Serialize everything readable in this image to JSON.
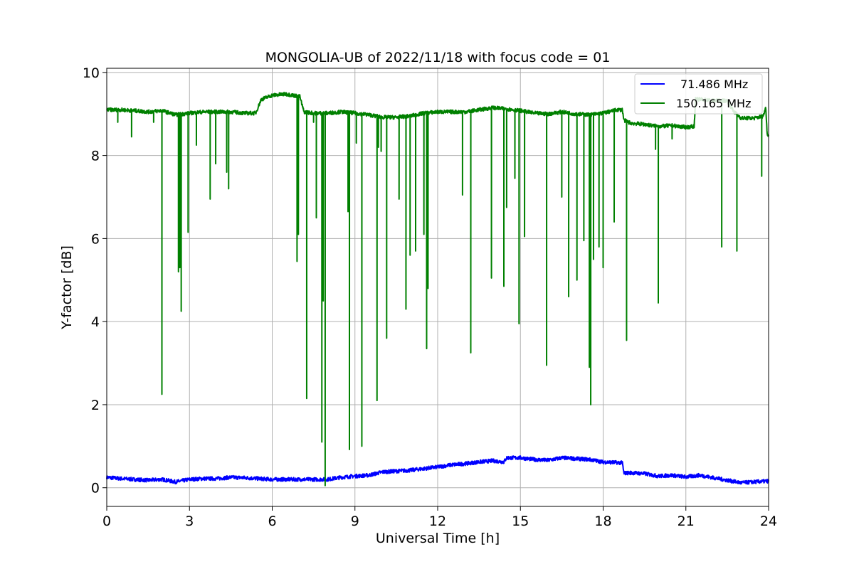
{
  "chart_data": {
    "type": "line",
    "title": "MONGOLIA-UB of 2022/11/18 with focus code = 01",
    "xlabel": "Universal Time [h]",
    "ylabel": "Y-factor [dB]",
    "xlim": [
      0,
      24
    ],
    "ylim": [
      -0.45,
      10.1
    ],
    "xticks": [
      0,
      3,
      6,
      9,
      12,
      15,
      18,
      21,
      24
    ],
    "yticks": [
      0,
      2,
      4,
      6,
      8,
      10
    ],
    "grid": true,
    "legend_position": "top-right",
    "series": [
      {
        "name": "71.486 MHz",
        "color": "#0000ff",
        "points": [
          [
            0,
            0.25
          ],
          [
            0.5,
            0.22
          ],
          [
            1,
            0.2
          ],
          [
            1.5,
            0.18
          ],
          [
            2,
            0.2
          ],
          [
            2.5,
            0.14
          ],
          [
            3,
            0.2
          ],
          [
            3.5,
            0.22
          ],
          [
            4,
            0.22
          ],
          [
            4.5,
            0.25
          ],
          [
            5,
            0.24
          ],
          [
            5.5,
            0.22
          ],
          [
            6,
            0.2
          ],
          [
            6.5,
            0.2
          ],
          [
            7,
            0.2
          ],
          [
            7.5,
            0.2
          ],
          [
            8,
            0.2
          ],
          [
            8.5,
            0.25
          ],
          [
            9,
            0.28
          ],
          [
            9.5,
            0.3
          ],
          [
            10,
            0.38
          ],
          [
            10.5,
            0.4
          ],
          [
            11,
            0.42
          ],
          [
            11.5,
            0.46
          ],
          [
            12,
            0.5
          ],
          [
            12.5,
            0.55
          ],
          [
            13,
            0.58
          ],
          [
            13.5,
            0.62
          ],
          [
            14,
            0.65
          ],
          [
            14.4,
            0.62
          ],
          [
            14.5,
            0.72
          ],
          [
            15,
            0.72
          ],
          [
            15.5,
            0.68
          ],
          [
            16,
            0.66
          ],
          [
            16.5,
            0.72
          ],
          [
            17,
            0.7
          ],
          [
            17.5,
            0.68
          ],
          [
            18,
            0.62
          ],
          [
            18.7,
            0.6
          ],
          [
            18.75,
            0.35
          ],
          [
            19,
            0.36
          ],
          [
            19.5,
            0.34
          ],
          [
            20,
            0.28
          ],
          [
            20.5,
            0.3
          ],
          [
            21,
            0.26
          ],
          [
            21.5,
            0.3
          ],
          [
            22,
            0.24
          ],
          [
            22.5,
            0.18
          ],
          [
            23,
            0.12
          ],
          [
            23.5,
            0.14
          ],
          [
            24,
            0.16
          ]
        ],
        "spikes": []
      },
      {
        "name": "150.165 MHz",
        "color": "#008000",
        "points": [
          [
            0,
            9.1
          ],
          [
            0.5,
            9.1
          ],
          [
            1,
            9.08
          ],
          [
            1.5,
            9.05
          ],
          [
            2,
            9.08
          ],
          [
            2.5,
            8.98
          ],
          [
            3,
            9.02
          ],
          [
            3.5,
            9.05
          ],
          [
            4,
            9.05
          ],
          [
            4.5,
            9.05
          ],
          [
            5,
            9.02
          ],
          [
            5.4,
            9.02
          ],
          [
            5.6,
            9.35
          ],
          [
            6,
            9.45
          ],
          [
            6.5,
            9.48
          ],
          [
            7,
            9.42
          ],
          [
            7.15,
            9.05
          ],
          [
            7.5,
            9.02
          ],
          [
            8,
            9.02
          ],
          [
            8.5,
            9.05
          ],
          [
            9,
            9.02
          ],
          [
            9.5,
            8.98
          ],
          [
            10,
            8.92
          ],
          [
            10.5,
            8.92
          ],
          [
            11,
            8.95
          ],
          [
            11.5,
            9.02
          ],
          [
            12,
            9.05
          ],
          [
            12.5,
            9.05
          ],
          [
            13,
            9.05
          ],
          [
            13.5,
            9.1
          ],
          [
            14,
            9.15
          ],
          [
            14.5,
            9.12
          ],
          [
            15,
            9.08
          ],
          [
            15.5,
            9.02
          ],
          [
            16,
            9.0
          ],
          [
            16.5,
            9.05
          ],
          [
            17,
            9.0
          ],
          [
            17.5,
            8.98
          ],
          [
            18,
            9.02
          ],
          [
            18.5,
            9.1
          ],
          [
            18.7,
            9.1
          ],
          [
            18.75,
            8.85
          ],
          [
            19,
            8.78
          ],
          [
            19.5,
            8.75
          ],
          [
            20,
            8.7
          ],
          [
            20.5,
            8.72
          ],
          [
            21,
            8.68
          ],
          [
            21.3,
            8.7
          ],
          [
            21.35,
            9.35
          ],
          [
            21.5,
            9.35
          ],
          [
            22,
            9.32
          ],
          [
            22.5,
            9.32
          ],
          [
            22.75,
            9.05
          ],
          [
            23,
            8.9
          ],
          [
            23.5,
            8.9
          ],
          [
            23.8,
            8.95
          ],
          [
            23.9,
            9.15
          ],
          [
            23.95,
            8.5
          ],
          [
            24,
            8.5
          ]
        ],
        "spikes": [
          [
            0.4,
            8.8
          ],
          [
            0.9,
            8.45
          ],
          [
            1.7,
            8.8
          ],
          [
            2.0,
            2.25
          ],
          [
            2.6,
            5.2
          ],
          [
            2.65,
            5.3
          ],
          [
            2.7,
            4.25
          ],
          [
            2.95,
            6.15
          ],
          [
            3.25,
            8.25
          ],
          [
            3.75,
            6.95
          ],
          [
            3.95,
            7.8
          ],
          [
            4.35,
            7.6
          ],
          [
            4.42,
            7.2
          ],
          [
            6.9,
            5.45
          ],
          [
            6.95,
            6.1
          ],
          [
            7.25,
            2.15
          ],
          [
            7.5,
            8.8
          ],
          [
            7.6,
            6.5
          ],
          [
            7.8,
            1.1
          ],
          [
            7.85,
            4.5
          ],
          [
            7.92,
            0.05
          ],
          [
            8.75,
            6.65
          ],
          [
            8.8,
            0.92
          ],
          [
            9.05,
            8.3
          ],
          [
            9.25,
            1.0
          ],
          [
            9.8,
            2.1
          ],
          [
            9.85,
            8.2
          ],
          [
            9.95,
            8.1
          ],
          [
            10.15,
            3.6
          ],
          [
            10.6,
            6.95
          ],
          [
            10.85,
            4.3
          ],
          [
            11.0,
            5.6
          ],
          [
            11.2,
            5.7
          ],
          [
            11.5,
            6.1
          ],
          [
            11.6,
            3.35
          ],
          [
            11.65,
            4.8
          ],
          [
            12.9,
            7.05
          ],
          [
            13.2,
            3.25
          ],
          [
            13.95,
            5.05
          ],
          [
            14.4,
            4.85
          ],
          [
            14.5,
            6.75
          ],
          [
            14.8,
            7.45
          ],
          [
            14.95,
            3.95
          ],
          [
            15.15,
            6.05
          ],
          [
            15.95,
            2.95
          ],
          [
            16.5,
            7.0
          ],
          [
            16.75,
            4.6
          ],
          [
            17.05,
            5.0
          ],
          [
            17.3,
            5.95
          ],
          [
            17.5,
            2.9
          ],
          [
            17.55,
            2.0
          ],
          [
            17.65,
            5.5
          ],
          [
            17.85,
            5.8
          ],
          [
            18.0,
            5.3
          ],
          [
            18.4,
            6.4
          ],
          [
            18.85,
            3.55
          ],
          [
            19.9,
            8.15
          ],
          [
            20.0,
            4.45
          ],
          [
            20.5,
            8.4
          ],
          [
            22.3,
            5.8
          ],
          [
            22.85,
            5.7
          ],
          [
            23.75,
            7.5
          ]
        ]
      }
    ]
  }
}
